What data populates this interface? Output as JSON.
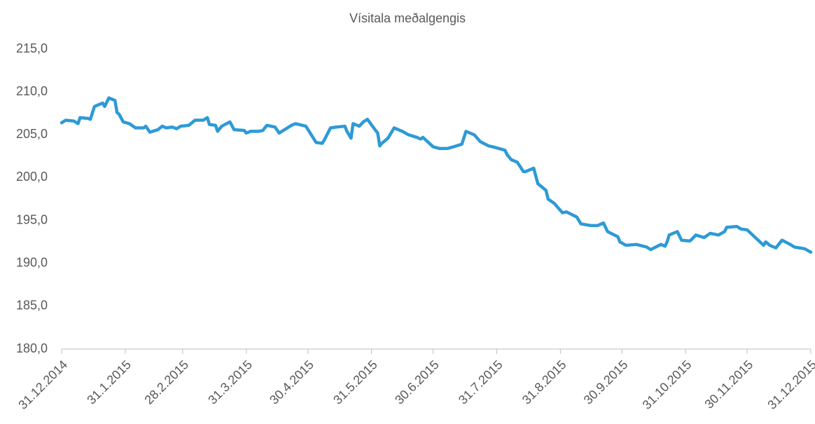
{
  "chart_data": {
    "type": "line",
    "title": "Vísitala meðalgengis",
    "x": [
      "31.12.2014",
      "2.1.2015",
      "6.1.2015",
      "8.1.2015",
      "9.1.2015",
      "13.1.2015",
      "14.1.2015",
      "16.1.2015",
      "19.1.2015",
      "20.1.2015",
      "21.1.2015",
      "23.1.2015",
      "26.1.2015",
      "27.1.2015",
      "28.1.2015",
      "30.1.2015",
      "2.2.2015",
      "5.2.2015",
      "9.2.2015",
      "10.2.2015",
      "12.2.2015",
      "16.2.2015",
      "18.2.2015",
      "20.2.2015",
      "23.2.2015",
      "25.2.2015",
      "27.2.2015",
      "3.3.2015",
      "6.3.2015",
      "10.3.2015",
      "12.3.2015",
      "13.3.2015",
      "16.3.2015",
      "17.3.2015",
      "19.3.2015",
      "23.3.2015",
      "25.3.2015",
      "30.3.2015",
      "31.3.2015",
      "2.4.2015",
      "6.4.2015",
      "8.4.2015",
      "10.4.2015",
      "14.4.2015",
      "16.4.2015",
      "20.4.2015",
      "22.4.2015",
      "24.4.2015",
      "29.4.2015",
      "4.5.2015",
      "7.5.2015",
      "8.5.2015",
      "11.5.2015",
      "14.5.2015",
      "18.5.2015",
      "19.5.2015",
      "21.5.2015",
      "22.5.2015",
      "25.5.2015",
      "27.5.2015",
      "29.5.2015",
      "2.6.2015",
      "3.6.2015",
      "4.6.2015",
      "5.6.2015",
      "8.6.2015",
      "11.6.2015",
      "15.6.2015",
      "18.6.2015",
      "22.6.2015",
      "24.6.2015",
      "25.6.2015",
      "30.6.2015",
      "3.7.2015",
      "7.7.2015",
      "10.7.2015",
      "14.7.2015",
      "16.7.2015",
      "20.7.2015",
      "23.7.2015",
      "27.7.2015",
      "29.7.2015",
      "4.8.2015",
      "5.8.2015",
      "7.8.2015",
      "10.8.2015",
      "13.8.2015",
      "14.8.2015",
      "18.8.2015",
      "20.8.2015",
      "24.8.2015",
      "25.8.2015",
      "28.8.2015",
      "1.9.2015",
      "3.9.2015",
      "8.9.2015",
      "10.9.2015",
      "15.9.2015",
      "18.9.2015",
      "21.9.2015",
      "23.9.2015",
      "28.9.2015",
      "29.9.2015",
      "2.10.2015",
      "7.10.2015",
      "12.10.2015",
      "14.10.2015",
      "19.10.2015",
      "21.10.2015",
      "22.10.2015",
      "23.10.2015",
      "27.10.2015",
      "29.10.2015",
      "2.11.2015",
      "3.11.2015",
      "5.11.2015",
      "9.11.2015",
      "12.11.2015",
      "16.11.2015",
      "19.11.2015",
      "20.11.2015",
      "25.11.2015",
      "27.11.2015",
      "30.11.2015",
      "4.12.2015",
      "8.12.2015",
      "9.12.2015",
      "11.12.2015",
      "14.12.2015",
      "17.12.2015",
      "21.12.2015",
      "23.12.2015",
      "28.12.2015",
      "31.12.2015"
    ],
    "series": [
      {
        "name": "Vísitala meðalgengis",
        "color": "#2e9ad6",
        "values": [
          206.4,
          206.7,
          206.6,
          206.3,
          207.0,
          206.9,
          206.8,
          208.3,
          208.6,
          208.7,
          208.3,
          209.3,
          209.0,
          207.6,
          207.4,
          206.5,
          206.3,
          205.8,
          205.8,
          206.0,
          205.3,
          205.6,
          206.0,
          205.8,
          205.9,
          205.7,
          206.0,
          206.1,
          206.7,
          206.7,
          207.0,
          206.2,
          206.1,
          205.4,
          206.0,
          206.5,
          205.6,
          205.5,
          205.2,
          205.4,
          205.4,
          205.5,
          206.1,
          205.9,
          205.2,
          205.8,
          206.1,
          206.3,
          206.0,
          204.1,
          204.0,
          204.4,
          205.8,
          205.9,
          206.0,
          205.4,
          204.6,
          206.3,
          206.0,
          206.5,
          206.8,
          205.5,
          205.2,
          203.7,
          204.0,
          204.6,
          205.8,
          205.4,
          205.0,
          204.7,
          204.5,
          204.7,
          203.6,
          203.4,
          203.4,
          203.6,
          203.9,
          205.4,
          205.0,
          204.2,
          203.7,
          203.6,
          203.2,
          202.7,
          202.1,
          201.8,
          200.7,
          200.7,
          201.1,
          199.3,
          198.5,
          197.5,
          197.0,
          195.9,
          196.0,
          195.4,
          194.6,
          194.4,
          194.4,
          194.7,
          193.7,
          193.1,
          192.5,
          192.1,
          192.2,
          191.9,
          191.6,
          192.2,
          192.0,
          192.5,
          193.3,
          193.7,
          192.7,
          192.6,
          192.8,
          193.3,
          193.0,
          193.5,
          193.3,
          193.7,
          194.2,
          194.3,
          194.0,
          193.9,
          193.0,
          192.1,
          192.5,
          192.1,
          191.8,
          192.7,
          192.2,
          191.9,
          191.7,
          191.3
        ]
      }
    ],
    "xlim": [
      "31.12.2014",
      "31.12.2015"
    ],
    "xticks": [
      "31.12.2014",
      "31.1.2015",
      "28.2.2015",
      "31.3.2015",
      "30.4.2015",
      "31.5.2015",
      "30.6.2015",
      "31.7.2015",
      "31.8.2015",
      "30.9.2015",
      "31.10.2015",
      "30.11.2015",
      "31.12.2015"
    ],
    "ylim": [
      180,
      215
    ],
    "yticks": [
      {
        "value": 180,
        "label": "180,0"
      },
      {
        "value": 185,
        "label": "185,0"
      },
      {
        "value": 190,
        "label": "190,0"
      },
      {
        "value": 195,
        "label": "195,0"
      },
      {
        "value": 200,
        "label": "200,0"
      },
      {
        "value": 205,
        "label": "205,0"
      },
      {
        "value": 210,
        "label": "210,0"
      },
      {
        "value": 215,
        "label": "215,0"
      }
    ],
    "grid": false
  }
}
